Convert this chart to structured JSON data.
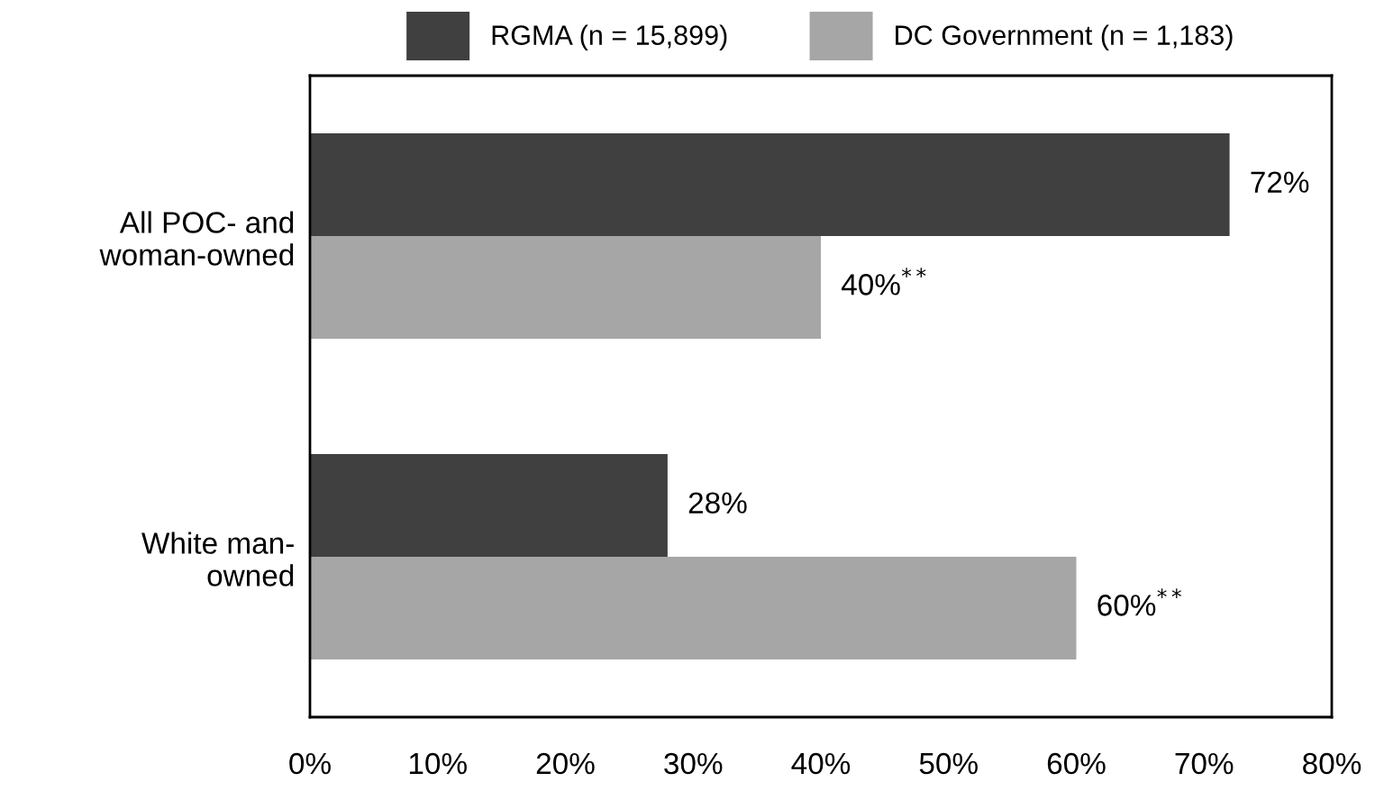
{
  "chart_data": {
    "type": "bar",
    "orientation": "horizontal",
    "categories": [
      "All POC- and\nwoman-owned",
      "White man-\nowned"
    ],
    "series": [
      {
        "name": "RGMA (n = 15,899)",
        "color": "#404040",
        "values": [
          72,
          28
        ],
        "value_labels": [
          "72%",
          "28%"
        ]
      },
      {
        "name": "DC Government (n = 1,183)",
        "color": "#a6a6a6",
        "values": [
          40,
          60
        ],
        "value_labels": [
          "40%$^{**}$",
          "60%$^{**}$"
        ]
      }
    ],
    "xlim": [
      0,
      80
    ],
    "xticks": [
      {
        "value": 0,
        "label": "0%"
      },
      {
        "value": 10,
        "label": "10%"
      },
      {
        "value": 20,
        "label": "20%"
      },
      {
        "value": 30,
        "label": "30%"
      },
      {
        "value": 40,
        "label": "40%"
      },
      {
        "value": 50,
        "label": "50%"
      },
      {
        "value": 60,
        "label": "60%"
      },
      {
        "value": 70,
        "label": "70%"
      },
      {
        "value": 80,
        "label": "80%"
      }
    ],
    "grid": false,
    "legend": "top"
  }
}
